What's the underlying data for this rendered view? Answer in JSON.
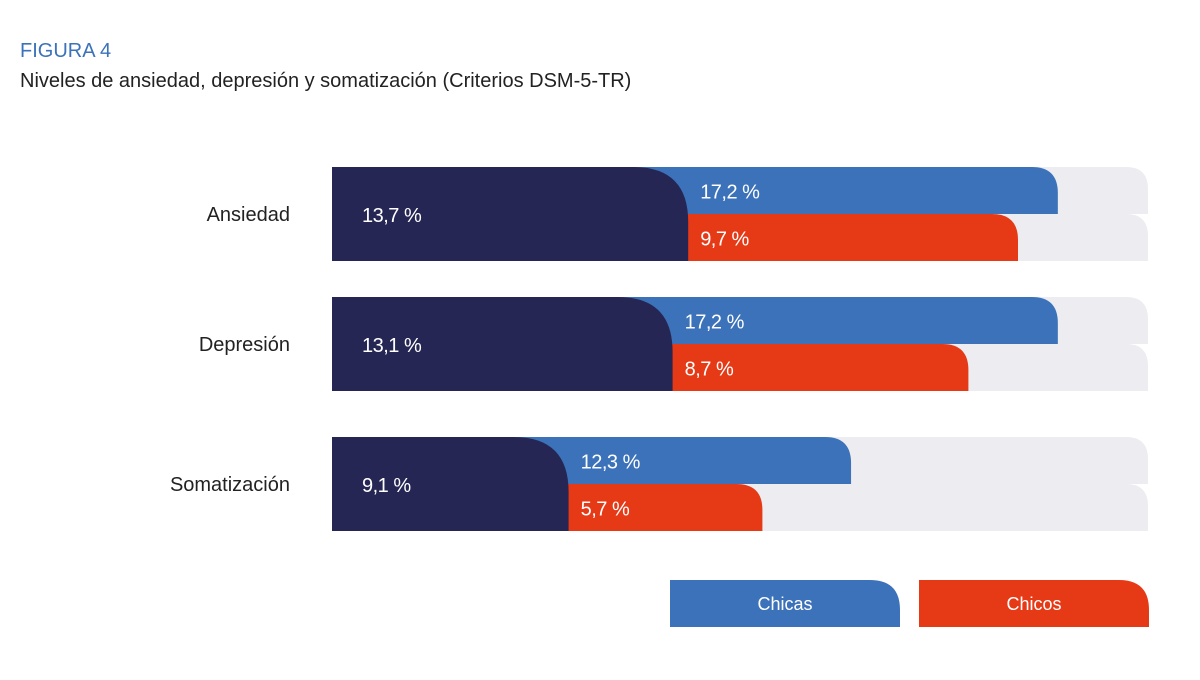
{
  "figure_label": "FIGURA 4",
  "title": "Niveles de ansiedad, depresión y somatización (Criterios DSM-5-TR)",
  "colors": {
    "total": "#262654",
    "chicas": "#3b72b9",
    "chicos": "#e63a17",
    "track": "#ececf1"
  },
  "chart_data": {
    "type": "bar",
    "orientation": "horizontal",
    "categories": [
      "Ansiedad",
      "Depresión",
      "Somatización"
    ],
    "total": {
      "values": [
        13.7,
        13.1,
        9.1
      ],
      "labels": [
        "13,7 %",
        "13,1 %",
        "9,1 %"
      ]
    },
    "series": [
      {
        "name": "Chicas",
        "values": [
          17.2,
          17.2,
          12.3
        ],
        "labels": [
          "17,2 %",
          "17,2 %",
          "12,3 %"
        ]
      },
      {
        "name": "Chicos",
        "values": [
          9.7,
          8.7,
          5.7
        ],
        "labels": [
          "9,7 %",
          "8,7 %",
          "5,7 %"
        ]
      }
    ],
    "legend": "bottom-right",
    "grid": false
  }
}
